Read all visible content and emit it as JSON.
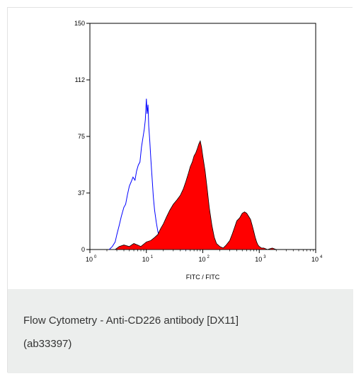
{
  "caption": {
    "title_line1": "Flow Cytometry - Anti-CD226 antibody [DX11]",
    "title_line2": "(ab33397)"
  },
  "chart_data": {
    "type": "area",
    "xlabel": "FITC / FITC",
    "ylabel": "",
    "x_scale": "log",
    "xlim": [
      1,
      10000
    ],
    "ylim": [
      0,
      150
    ],
    "x_ticks": [
      {
        "value": 1,
        "base": "10",
        "exp": "0"
      },
      {
        "value": 10,
        "base": "10",
        "exp": "1"
      },
      {
        "value": 100,
        "base": "10",
        "exp": "2"
      },
      {
        "value": 1000,
        "base": "10",
        "exp": "3"
      },
      {
        "value": 10000,
        "base": "10",
        "exp": "4"
      }
    ],
    "y_ticks": [
      {
        "value": 0,
        "label": "0"
      },
      {
        "value": 37.5,
        "label": "37"
      },
      {
        "value": 75,
        "label": "75"
      },
      {
        "value": 112.5,
        "label": "112"
      },
      {
        "value": 150,
        "label": "150"
      }
    ],
    "grid": false,
    "series": [
      {
        "style": "line",
        "color": "#0000ff",
        "x": [
          2.2,
          2.5,
          2.8,
          3.0,
          3.3,
          3.6,
          4.0,
          4.3,
          4.6,
          5.0,
          5.4,
          5.8,
          6.3,
          6.7,
          7.2,
          7.7,
          8.2,
          8.7,
          9.2,
          9.6,
          10.0,
          10.3,
          10.7,
          11.0,
          11.5,
          12.0,
          12.6,
          13.3,
          14.0,
          15.0,
          16.0,
          17.0,
          18.5,
          20.0,
          23.0,
          26.0,
          30.0,
          36.0,
          45.0,
          55.0
        ],
        "y": [
          0,
          2,
          5,
          10,
          16,
          22,
          28,
          30,
          36,
          42,
          45,
          48,
          46,
          52,
          56,
          58,
          68,
          74,
          80,
          86,
          100,
          90,
          96,
          82,
          72,
          60,
          48,
          35,
          26,
          18,
          12,
          8,
          5,
          3,
          2,
          2,
          1,
          1,
          0,
          0
        ]
      },
      {
        "style": "filled",
        "color": "#ff0000",
        "x": [
          2.8,
          3.3,
          4.0,
          5.0,
          6.0,
          7.0,
          8.0,
          10.0,
          12.0,
          14.0,
          16.0,
          18.0,
          20.0,
          23.0,
          26.0,
          30.0,
          35.0,
          40.0,
          45.0,
          50.0,
          55.0,
          60.0,
          65.0,
          70.0,
          75.0,
          80.0,
          85.0,
          90.0,
          95.0,
          100.0,
          110.0,
          120.0,
          130.0,
          145.0,
          160.0,
          175.0,
          200.0,
          230.0,
          260.0,
          300.0,
          330.0,
          360.0,
          400.0,
          450.0,
          500.0,
          550.0,
          600.0,
          650.0,
          700.0,
          750.0,
          800.0,
          850.0,
          900.0,
          950.0,
          1000.0,
          1100.0,
          1200.0,
          1400.0,
          1700.0,
          2000.0
        ],
        "y": [
          0,
          2,
          3,
          2,
          4,
          3,
          2,
          5,
          6,
          8,
          10,
          14,
          17,
          22,
          26,
          30,
          33,
          36,
          40,
          45,
          50,
          55,
          58,
          62,
          64,
          67,
          70,
          72,
          68,
          62,
          52,
          40,
          28,
          16,
          8,
          4,
          2,
          1,
          3,
          6,
          10,
          14,
          19,
          21,
          24,
          25,
          24,
          22,
          20,
          16,
          12,
          8,
          5,
          3,
          2,
          1,
          1,
          0,
          1,
          0
        ]
      }
    ]
  }
}
